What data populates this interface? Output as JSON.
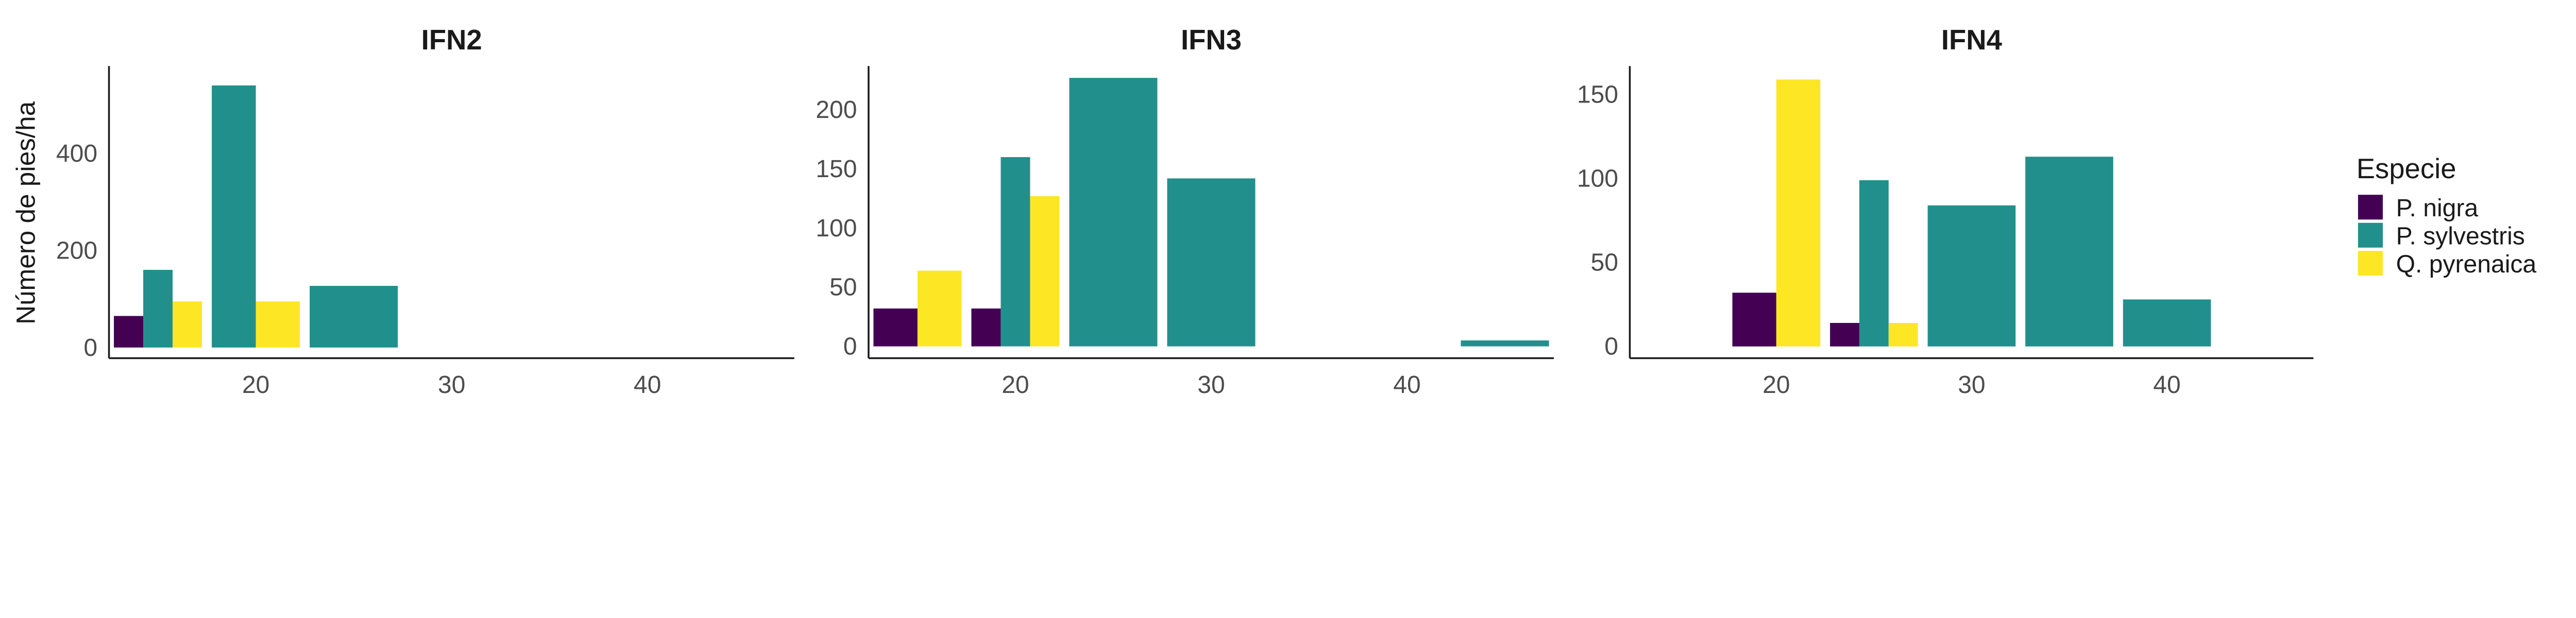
{
  "chart_data": {
    "type": "bar",
    "ylabel": "Número de pies/ha",
    "xlabel": "",
    "legend": {
      "title": "Especie",
      "placement": "right",
      "entries": [
        {
          "name": "P. nigra",
          "color": "#440154"
        },
        {
          "name": "P. sylvestris",
          "color": "#21908C"
        },
        {
          "name": "Q. pyrenaica",
          "color": "#FDE725"
        }
      ]
    },
    "grid": false,
    "panels": [
      {
        "title": "IFN2",
        "xlim": [
          12.5,
          47.5
        ],
        "ylim": [
          -22,
          580
        ],
        "xticks": [
          20,
          30,
          40
        ],
        "yticks": [
          0,
          200,
          400
        ],
        "bars": [
          {
            "x": 15,
            "species": "P. nigra",
            "value": 65
          },
          {
            "x": 15,
            "species": "P. sylvestris",
            "value": 160
          },
          {
            "x": 15,
            "species": "Q. pyrenaica",
            "value": 95
          },
          {
            "x": 20,
            "species": "P. sylvestris",
            "value": 540
          },
          {
            "x": 20,
            "species": "Q. pyrenaica",
            "value": 95
          },
          {
            "x": 25,
            "species": "P. sylvestris",
            "value": 127
          }
        ]
      },
      {
        "title": "IFN3",
        "xlim": [
          12.5,
          47.5
        ],
        "ylim": [
          -10,
          237
        ],
        "xticks": [
          20,
          30,
          40
        ],
        "yticks": [
          0,
          50,
          100,
          150,
          200
        ],
        "bars": [
          {
            "x": 15,
            "species": "P. nigra",
            "value": 32
          },
          {
            "x": 15,
            "species": "Q. pyrenaica",
            "value": 64
          },
          {
            "x": 20,
            "species": "P. nigra",
            "value": 32
          },
          {
            "x": 20,
            "species": "P. sylvestris",
            "value": 160
          },
          {
            "x": 20,
            "species": "Q. pyrenaica",
            "value": 127
          },
          {
            "x": 25,
            "species": "P. sylvestris",
            "value": 227
          },
          {
            "x": 30,
            "species": "P. sylvestris",
            "value": 142
          },
          {
            "x": 45,
            "species": "P. sylvestris",
            "value": 5
          }
        ]
      },
      {
        "title": "IFN4",
        "xlim": [
          12.5,
          47.5
        ],
        "ylim": [
          -7,
          167
        ],
        "xticks": [
          20,
          30,
          40
        ],
        "yticks": [
          0,
          50,
          100,
          150
        ],
        "bars": [
          {
            "x": 20,
            "species": "P. nigra",
            "value": 32
          },
          {
            "x": 20,
            "species": "Q. pyrenaica",
            "value": 159
          },
          {
            "x": 25,
            "species": "P. nigra",
            "value": 14
          },
          {
            "x": 25,
            "species": "P. sylvestris",
            "value": 99
          },
          {
            "x": 25,
            "species": "Q. pyrenaica",
            "value": 14
          },
          {
            "x": 30,
            "species": "P. sylvestris",
            "value": 84
          },
          {
            "x": 35,
            "species": "P. sylvestris",
            "value": 113
          },
          {
            "x": 40,
            "species": "P. sylvestris",
            "value": 28
          }
        ]
      }
    ]
  }
}
